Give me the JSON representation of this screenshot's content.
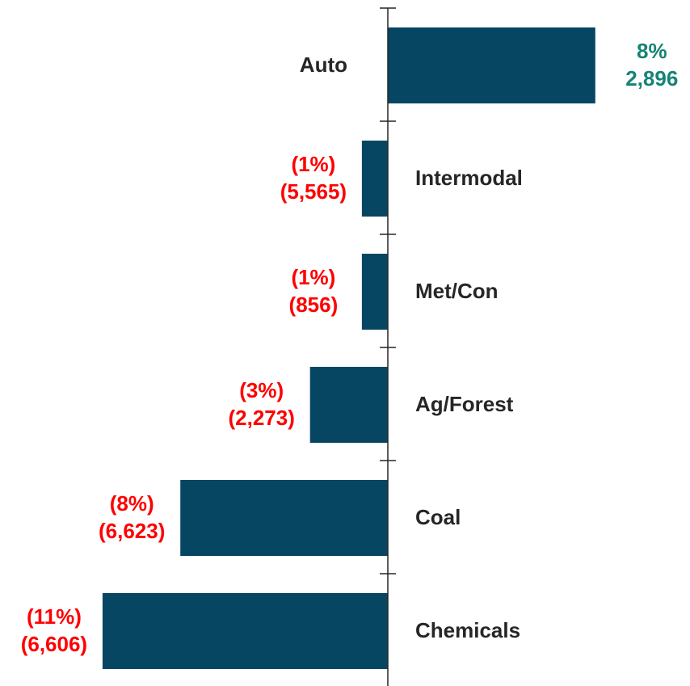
{
  "chart_data": {
    "type": "bar",
    "orientation": "horizontal",
    "categories": [
      "Auto",
      "Intermodal",
      "Met/Con",
      "Ag/Forest",
      "Coal",
      "Chemicals"
    ],
    "percent_change": [
      8,
      -1,
      -1,
      -3,
      -8,
      -11
    ],
    "percent_labels": [
      "8%",
      "(1%)",
      "(1%)",
      "(3%)",
      "(8%)",
      "(11%)"
    ],
    "volume_change": [
      2896,
      -5565,
      -856,
      -2273,
      -6623,
      -6606
    ],
    "volume_labels": [
      "2,896",
      "(5,565)",
      "(856)",
      "(2,273)",
      "(6,623)",
      "(6,606)"
    ],
    "xlim": [
      -13,
      10
    ],
    "grid": false,
    "legend": "none"
  },
  "colors": {
    "bar": "#064663",
    "positive_label": "#168374",
    "negative_label": "#ff0000",
    "axis": "#262626",
    "category_label": "#262626"
  }
}
